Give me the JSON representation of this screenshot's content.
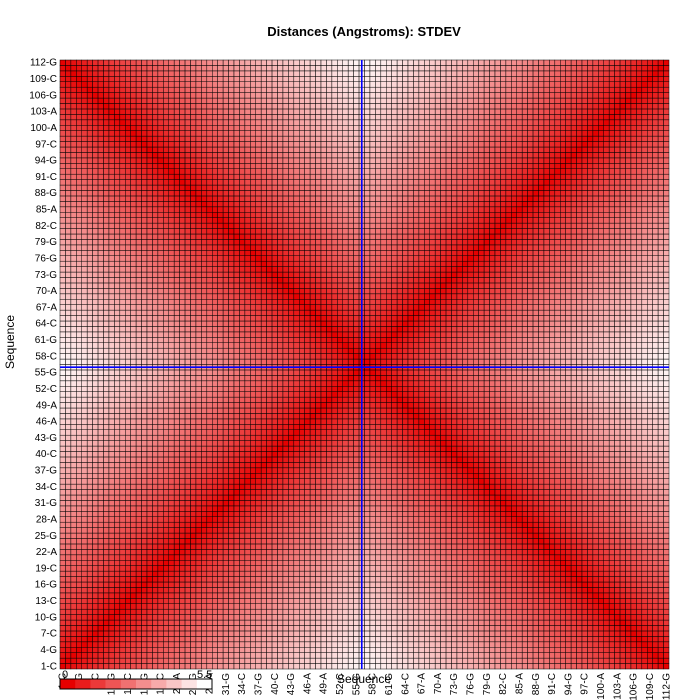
{
  "chart_data": {
    "type": "heatmap",
    "title": "Distances (Angstroms):  STDEV",
    "xlabel": "Sequence",
    "ylabel": "Sequence",
    "n": 112,
    "tick_step": 3,
    "tick_labels": [
      "1-C",
      "4-G",
      "7-C",
      "10-G",
      "13-C",
      "16-G",
      "19-C",
      "22-A",
      "25-G",
      "28-A",
      "31-G",
      "34-C",
      "37-G",
      "40-C",
      "43-G",
      "46-A",
      "49-A",
      "52-C",
      "55-G",
      "58-C",
      "61-G",
      "64-C",
      "67-A",
      "70-A",
      "73-G",
      "76-G",
      "79-G",
      "82-C",
      "85-A",
      "88-G",
      "91-C",
      "94-G",
      "97-C",
      "100-A",
      "103-A",
      "106-G",
      "109-C",
      "112-G"
    ],
    "value_range": [
      0,
      5.5
    ],
    "values_rule": "stdev grows with distance from both diagonals: near 0 on the main and anti-diagonal, highest (~5.5) midway between them at the left/right/top/bottom edges",
    "colors": {
      "low": "#e60000",
      "high": "#ffffff",
      "grid": "#000000",
      "crosshair": "#0000ff"
    },
    "crosshair": {
      "column": 56,
      "row": 56
    },
    "legend": {
      "min_label": "0",
      "max_label": "5.5",
      "steps": 10,
      "placement": "bottom-left"
    }
  }
}
